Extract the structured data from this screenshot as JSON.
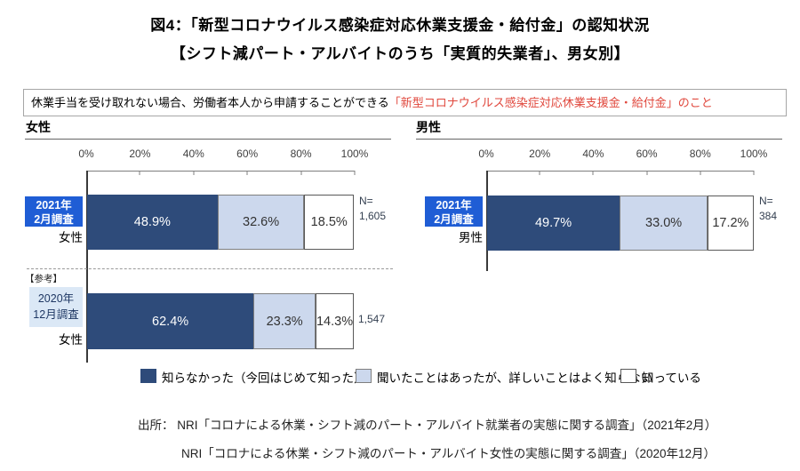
{
  "title": {
    "line1": "図4：「新型コロナウイルス感染症対応休業支援金・給付金」の認知状況",
    "line2": "【シフト減パート・アルバイトのうち「実質的失業者」、男女別】"
  },
  "note": {
    "black": "休業手当を受け取れない場合、労働者本人から申請することができる",
    "red": "「新型コロナウイルス感染症対応休業支援金・給付金」のこと"
  },
  "axis": {
    "ticks": [
      "0%",
      "20%",
      "40%",
      "60%",
      "80%",
      "100%"
    ]
  },
  "panels": {
    "female": {
      "header": "女性",
      "rows": [
        {
          "badge_line1": "2021年",
          "badge_line2": "2月調査",
          "gender": "女性",
          "n_prefix": "N=",
          "n_value": "1,605"
        },
        {
          "ref_label": "【参考】",
          "badge_line1": "2020年",
          "badge_line2": "12月調査",
          "gender": "女性",
          "n_value": "1,547"
        }
      ]
    },
    "male": {
      "header": "男性",
      "rows": [
        {
          "badge_line1": "2021年",
          "badge_line2": "2月調査",
          "gender": "男性",
          "n_prefix": "N=",
          "n_value": "384"
        }
      ]
    }
  },
  "legend": {
    "items": [
      {
        "label": "知らなかった（今回はじめて知った）"
      },
      {
        "label": "聞いたことはあったが、詳しいことはよく知らない"
      },
      {
        "label": "知っている"
      }
    ]
  },
  "sources": {
    "line1": "出所： NRI「コロナによる休業・シフト減のパート・アルバイト就業者の実態に関する調査」（2021年2月）",
    "line2": "NRI「コロナによる休業・シフト減のパート・アルバイト女性の実態に関する調査」（2020年12月）"
  },
  "colors": {
    "badge_blue": "#1f5dd5",
    "badge_light_bg": "#dbe8f6",
    "badge_light_text": "#1f3864",
    "seg_dark": "#2e4b7a",
    "seg_light": "#ccd8ed",
    "seg_white": "#ffffff",
    "seg_border": "#7f7f7f",
    "note_red": "#e0473c",
    "n_text": "#333f50"
  },
  "chart_data": [
    {
      "type": "bar",
      "orientation": "horizontal",
      "stacked": true,
      "title": "女性",
      "x_ticks": [
        "0%",
        "20%",
        "40%",
        "60%",
        "80%",
        "100%"
      ],
      "xlim": [
        0,
        100
      ],
      "grid": false,
      "legend_position": "bottom",
      "categories": [
        "2021年2月調査 女性",
        "【参考】2020年12月調査 女性"
      ],
      "n_values": [
        "1,605",
        "1,547"
      ],
      "series": [
        {
          "name": "知らなかった（今回はじめて知った）",
          "values": [
            48.9,
            62.4
          ]
        },
        {
          "name": "聞いたことはあったが、詳しいことはよく知らない",
          "values": [
            32.6,
            23.3
          ]
        },
        {
          "name": "知っている",
          "values": [
            18.5,
            14.3
          ]
        }
      ]
    },
    {
      "type": "bar",
      "orientation": "horizontal",
      "stacked": true,
      "title": "男性",
      "x_ticks": [
        "0%",
        "20%",
        "40%",
        "60%",
        "80%",
        "100%"
      ],
      "xlim": [
        0,
        100
      ],
      "grid": false,
      "legend_position": "bottom",
      "categories": [
        "2021年2月調査 男性"
      ],
      "n_values": [
        "384"
      ],
      "series": [
        {
          "name": "知らなかった（今回はじめて知った）",
          "values": [
            49.7
          ]
        },
        {
          "name": "聞いたことはあったが、詳しいことはよく知らない",
          "values": [
            33.0
          ]
        },
        {
          "name": "知っている",
          "values": [
            17.2
          ]
        }
      ]
    }
  ]
}
